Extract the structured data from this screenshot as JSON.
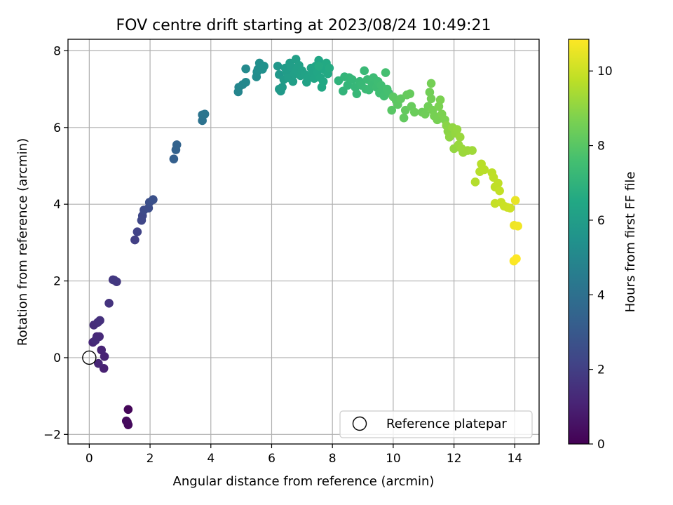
{
  "chart_data": {
    "type": "scatter",
    "title": "FOV centre drift starting at 2023/08/24 10:49:21",
    "xlabel": "Angular distance from reference (arcmin)",
    "ylabel": "Rotation from reference (arcmin)",
    "xlim": [
      -0.7,
      14.8
    ],
    "ylim": [
      -2.25,
      8.3
    ],
    "xticks": [
      0,
      2,
      4,
      6,
      8,
      10,
      12,
      14
    ],
    "yticks": [
      -2,
      0,
      2,
      4,
      6,
      8
    ],
    "grid": true,
    "legend": {
      "placement": "lower-right",
      "entries": [
        "Reference platepar"
      ]
    },
    "reference_point": {
      "x": 0,
      "y": 0,
      "label": "Reference platepar"
    },
    "colorbar": {
      "label": "Hours from first FF file",
      "min": 0,
      "max": 10.85,
      "ticks": [
        0,
        2,
        4,
        6,
        8,
        10
      ],
      "colormap": "viridis"
    },
    "points": [
      [
        1.28,
        -1.35,
        0.15
      ],
      [
        1.25,
        -1.68,
        0.2
      ],
      [
        1.28,
        -1.75,
        0.25
      ],
      [
        1.22,
        -1.65,
        0.3
      ],
      [
        0.48,
        -0.28,
        1.0
      ],
      [
        0.5,
        0.03,
        1.05
      ],
      [
        0.4,
        0.2,
        1.1
      ],
      [
        0.3,
        -0.15,
        1.15
      ],
      [
        0.12,
        0.4,
        1.2
      ],
      [
        0.25,
        0.55,
        1.25
      ],
      [
        0.33,
        0.55,
        1.3
      ],
      [
        0.2,
        0.45,
        1.35
      ],
      [
        0.15,
        0.85,
        1.4
      ],
      [
        0.28,
        0.92,
        1.45
      ],
      [
        0.35,
        0.97,
        1.5
      ],
      [
        0.65,
        1.42,
        1.6
      ],
      [
        0.78,
        2.03,
        1.7
      ],
      [
        0.9,
        1.98,
        1.75
      ],
      [
        0.82,
        2.02,
        1.8
      ],
      [
        1.5,
        3.07,
        2.05
      ],
      [
        1.58,
        3.28,
        2.15
      ],
      [
        1.72,
        3.58,
        2.3
      ],
      [
        1.75,
        3.7,
        2.35
      ],
      [
        1.8,
        3.85,
        2.45
      ],
      [
        1.95,
        3.9,
        2.55
      ],
      [
        1.98,
        4.05,
        2.6
      ],
      [
        2.1,
        4.12,
        2.7
      ],
      [
        2.78,
        5.18,
        3.3
      ],
      [
        2.85,
        5.42,
        3.4
      ],
      [
        2.88,
        5.55,
        3.45
      ],
      [
        3.72,
        6.18,
        4.1
      ],
      [
        3.72,
        6.33,
        4.15
      ],
      [
        3.8,
        6.35,
        4.2
      ],
      [
        4.9,
        6.93,
        4.9
      ],
      [
        4.92,
        7.05,
        4.95
      ],
      [
        5.05,
        7.12,
        5.0
      ],
      [
        5.15,
        7.18,
        5.05
      ],
      [
        5.15,
        7.53,
        5.1
      ],
      [
        5.5,
        7.32,
        5.2
      ],
      [
        5.52,
        7.45,
        5.25
      ],
      [
        5.55,
        7.52,
        5.3
      ],
      [
        5.6,
        7.68,
        5.35
      ],
      [
        5.7,
        7.52,
        5.4
      ],
      [
        5.75,
        7.6,
        5.45
      ],
      [
        6.2,
        7.6,
        5.7
      ],
      [
        6.25,
        7.38,
        5.75
      ],
      [
        6.25,
        7.0,
        5.8
      ],
      [
        6.3,
        6.95,
        5.82
      ],
      [
        6.35,
        7.05,
        5.85
      ],
      [
        6.4,
        7.25,
        5.9
      ],
      [
        6.45,
        7.55,
        5.92
      ],
      [
        6.5,
        7.45,
        5.95
      ],
      [
        6.55,
        7.3,
        5.98
      ],
      [
        6.6,
        7.68,
        6.0
      ],
      [
        6.65,
        7.58,
        6.02
      ],
      [
        6.7,
        7.2,
        6.05
      ],
      [
        6.75,
        7.4,
        6.08
      ],
      [
        6.8,
        7.78,
        6.1
      ],
      [
        6.82,
        7.5,
        6.12
      ],
      [
        6.9,
        7.62,
        6.15
      ],
      [
        6.95,
        7.35,
        6.18
      ],
      [
        7.0,
        7.48,
        6.2
      ],
      [
        7.1,
        7.38,
        6.22
      ],
      [
        7.15,
        7.18,
        6.25
      ],
      [
        7.2,
        7.3,
        6.28
      ],
      [
        7.3,
        7.55,
        6.3
      ],
      [
        7.35,
        7.42,
        6.32
      ],
      [
        7.4,
        7.28,
        6.35
      ],
      [
        7.45,
        7.6,
        6.38
      ],
      [
        7.5,
        7.45,
        6.4
      ],
      [
        7.55,
        7.75,
        6.42
      ],
      [
        7.6,
        7.3,
        6.45
      ],
      [
        7.65,
        7.05,
        6.48
      ],
      [
        7.7,
        7.2,
        6.5
      ],
      [
        7.75,
        7.5,
        6.52
      ],
      [
        7.8,
        7.68,
        6.55
      ],
      [
        7.85,
        7.4,
        6.58
      ],
      [
        7.9,
        7.55,
        6.6
      ],
      [
        7.55,
        7.6,
        6.62
      ],
      [
        8.2,
        7.22,
        7.0
      ],
      [
        8.35,
        6.95,
        7.05
      ],
      [
        8.4,
        7.32,
        7.08
      ],
      [
        8.5,
        7.1,
        7.1
      ],
      [
        8.55,
        7.3,
        7.12
      ],
      [
        8.65,
        7.25,
        7.15
      ],
      [
        8.75,
        7.05,
        7.18
      ],
      [
        8.8,
        6.88,
        7.2
      ],
      [
        8.9,
        7.2,
        7.22
      ],
      [
        8.95,
        7.1,
        7.25
      ],
      [
        9.05,
        7.48,
        7.28
      ],
      [
        9.1,
        7.0,
        7.3
      ],
      [
        9.15,
        7.25,
        7.32
      ],
      [
        9.2,
        6.98,
        7.35
      ],
      [
        9.3,
        7.15,
        7.38
      ],
      [
        9.35,
        7.3,
        7.4
      ],
      [
        9.45,
        7.05,
        7.42
      ],
      [
        9.5,
        7.2,
        7.45
      ],
      [
        9.55,
        6.9,
        7.48
      ],
      [
        9.6,
        7.1,
        7.5
      ],
      [
        9.65,
        7.0,
        7.52
      ],
      [
        9.7,
        6.82,
        7.55
      ],
      [
        9.75,
        7.43,
        7.58
      ],
      [
        9.8,
        7.0,
        7.6
      ],
      [
        9.85,
        6.9,
        7.62
      ],
      [
        9.95,
        6.45,
        8.0
      ],
      [
        10.0,
        6.8,
        8.05
      ],
      [
        10.1,
        6.7,
        8.08
      ],
      [
        10.15,
        6.6,
        8.1
      ],
      [
        10.25,
        6.75,
        8.15
      ],
      [
        10.35,
        6.25,
        8.2
      ],
      [
        10.4,
        6.45,
        8.22
      ],
      [
        10.45,
        6.85,
        8.25
      ],
      [
        10.55,
        6.88,
        8.28
      ],
      [
        10.6,
        6.55,
        8.3
      ],
      [
        10.7,
        6.4,
        8.35
      ],
      [
        10.95,
        6.4,
        8.4
      ],
      [
        11.05,
        6.35,
        8.45
      ],
      [
        11.15,
        6.55,
        8.48
      ],
      [
        11.2,
        6.92,
        8.5
      ],
      [
        11.25,
        6.75,
        8.52
      ],
      [
        11.25,
        7.15,
        8.55
      ],
      [
        11.3,
        6.45,
        8.58
      ],
      [
        11.35,
        6.3,
        8.6
      ],
      [
        11.45,
        6.2,
        8.62
      ],
      [
        11.5,
        6.55,
        8.65
      ],
      [
        11.55,
        6.72,
        8.68
      ],
      [
        11.6,
        6.35,
        8.7
      ],
      [
        11.7,
        6.2,
        8.72
      ],
      [
        11.75,
        6.05,
        8.9
      ],
      [
        11.8,
        5.9,
        8.95
      ],
      [
        11.85,
        5.75,
        9.0
      ],
      [
        11.95,
        6.0,
        9.05
      ],
      [
        12.0,
        5.45,
        9.08
      ],
      [
        12.05,
        5.85,
        9.1
      ],
      [
        12.1,
        5.95,
        9.12
      ],
      [
        12.15,
        5.55,
        9.15
      ],
      [
        12.2,
        5.75,
        9.18
      ],
      [
        12.25,
        5.45,
        9.2
      ],
      [
        12.3,
        5.35,
        9.22
      ],
      [
        12.45,
        5.4,
        9.25
      ],
      [
        12.6,
        5.4,
        9.28
      ],
      [
        12.7,
        4.58,
        9.6
      ],
      [
        12.85,
        4.85,
        9.65
      ],
      [
        12.9,
        5.05,
        9.68
      ],
      [
        13.0,
        4.9,
        9.7
      ],
      [
        13.25,
        4.82,
        9.75
      ],
      [
        13.3,
        4.7,
        9.78
      ],
      [
        13.35,
        4.45,
        9.8
      ],
      [
        13.45,
        4.55,
        9.82
      ],
      [
        13.5,
        4.35,
        9.85
      ],
      [
        13.35,
        4.02,
        9.9
      ],
      [
        13.55,
        4.05,
        9.95
      ],
      [
        13.65,
        3.95,
        9.98
      ],
      [
        13.75,
        3.92,
        10.0
      ],
      [
        13.85,
        3.9,
        10.05
      ],
      [
        14.02,
        4.1,
        10.5
      ],
      [
        13.98,
        3.45,
        10.6
      ],
      [
        14.1,
        3.43,
        10.65
      ],
      [
        13.97,
        2.52,
        10.8
      ],
      [
        14.05,
        2.58,
        10.85
      ]
    ]
  }
}
